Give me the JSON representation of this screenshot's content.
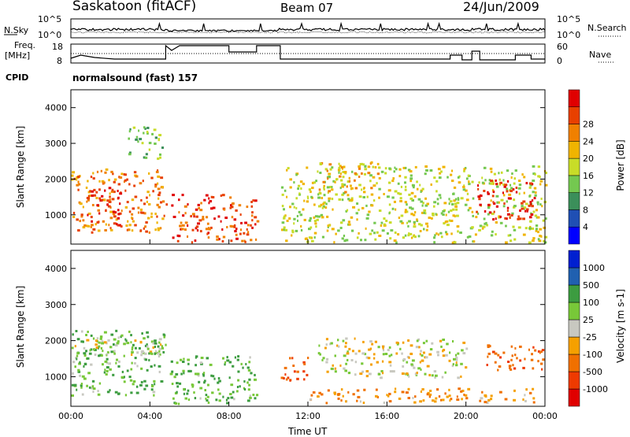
{
  "header": {
    "station": "Saskatoon (fitACF)",
    "beam": "Beam 07",
    "date": "24/Jun/2009"
  },
  "sky_panel": {
    "left_label": "N.Sky",
    "right_label": "N.Search",
    "ticks": [
      "10^5",
      "10^0"
    ]
  },
  "freq_panel": {
    "left_label_1": "Freq.",
    "left_label_2": "[MHz]",
    "left_ticks": [
      "18",
      "8"
    ],
    "right_ticks": [
      "60",
      "0"
    ],
    "right_label": "Nave"
  },
  "cpid": {
    "label": "CPID",
    "value": "normalsound (fast) 157"
  },
  "colors": {
    "power": [
      "#0000ff",
      "#1f4fb4",
      "#3b8f5a",
      "#74c850",
      "#c8dc28",
      "#f0b400",
      "#f08000",
      "#e84000",
      "#e00000"
    ],
    "velocity": [
      "#e00000",
      "#ee3a00",
      "#f07000",
      "#f5a000",
      "#c8c8c0",
      "#78c838",
      "#3c9c40",
      "#2060b0",
      "#0020d0"
    ]
  },
  "chart_data": [
    {
      "type": "heatmap",
      "title": "Power",
      "ylabel": "Slant Range [km]",
      "xlabel": "Time UT",
      "x_ticks": [
        "00:00",
        "04:00",
        "08:00",
        "12:00",
        "16:00",
        "20:00",
        "00:00"
      ],
      "y_ticks": [
        "1000",
        "2000",
        "3000",
        "4000"
      ],
      "ylim": [
        180,
        4500
      ],
      "xlim_hours": [
        0,
        24
      ],
      "colorbar": {
        "label": "Power [dB]",
        "ticks": [
          "4",
          "8",
          "12",
          "16",
          "20",
          "24",
          "28"
        ],
        "range": [
          0,
          32
        ]
      },
      "regions": [
        {
          "t": [
            0,
            4.8
          ],
          "r": [
            500,
            2300
          ],
          "level": 6
        },
        {
          "t": [
            0.8,
            2.5
          ],
          "r": [
            700,
            1800
          ],
          "level": 8
        },
        {
          "t": [
            2.8,
            4.6
          ],
          "r": [
            2600,
            3500
          ],
          "level": 3
        },
        {
          "t": [
            5.0,
            9.4
          ],
          "r": [
            250,
            1600
          ],
          "level": 7
        },
        {
          "t": [
            10.6,
            24
          ],
          "r": [
            250,
            2400
          ],
          "level": 4
        },
        {
          "t": [
            12.5,
            15.5
          ],
          "r": [
            1600,
            2500
          ],
          "level": 5
        },
        {
          "t": [
            20.5,
            23.5
          ],
          "r": [
            900,
            2000
          ],
          "level": 8
        }
      ]
    },
    {
      "type": "heatmap",
      "title": "Velocity",
      "ylabel": "Slant Range [km]",
      "xlabel": "Time UT",
      "x_ticks": [
        "00:00",
        "04:00",
        "08:00",
        "12:00",
        "16:00",
        "20:00",
        "00:00"
      ],
      "y_ticks": [
        "1000",
        "2000",
        "3000",
        "4000"
      ],
      "ylim": [
        180,
        4500
      ],
      "xlim_hours": [
        0,
        24
      ],
      "colorbar": {
        "label": "Velocity [m s-1]",
        "ticks": [
          "1000",
          "500",
          "100",
          "25",
          "-25",
          "-100",
          "-500",
          "-1000"
        ]
      },
      "regions": [
        {
          "t": [
            0,
            4.8
          ],
          "r": [
            500,
            2300
          ],
          "value": 100
        },
        {
          "t": [
            0,
            4.8
          ],
          "r": [
            1600,
            2100
          ],
          "value": 0
        },
        {
          "t": [
            5.0,
            9.4
          ],
          "r": [
            250,
            1600
          ],
          "value": 100
        },
        {
          "t": [
            10.6,
            12.0
          ],
          "r": [
            900,
            1600
          ],
          "value": -300
        },
        {
          "t": [
            12.0,
            24
          ],
          "r": [
            300,
            700
          ],
          "value": -100
        },
        {
          "t": [
            12.5,
            20.0
          ],
          "r": [
            1000,
            2100
          ],
          "value": 0
        },
        {
          "t": [
            21.0,
            24
          ],
          "r": [
            1200,
            1900
          ],
          "value": -200
        }
      ]
    }
  ]
}
